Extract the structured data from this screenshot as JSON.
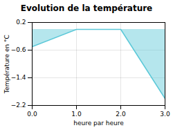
{
  "chart_data": {
    "type": "area",
    "title": "Evolution de la température",
    "xlabel": "heure par heure",
    "ylabel": "Température en °C",
    "x": [
      0,
      1,
      2,
      3
    ],
    "values": [
      -0.5,
      0.0,
      0.0,
      -2.0
    ],
    "color": "#5bc8d8",
    "xlim": [
      0,
      3
    ],
    "xticks": [
      0,
      1,
      2,
      3
    ],
    "ylim": [
      -2.2,
      0.2
    ],
    "yticks": [
      -2.2,
      -1.4,
      -0.6,
      0.2
    ],
    "grid": true
  }
}
